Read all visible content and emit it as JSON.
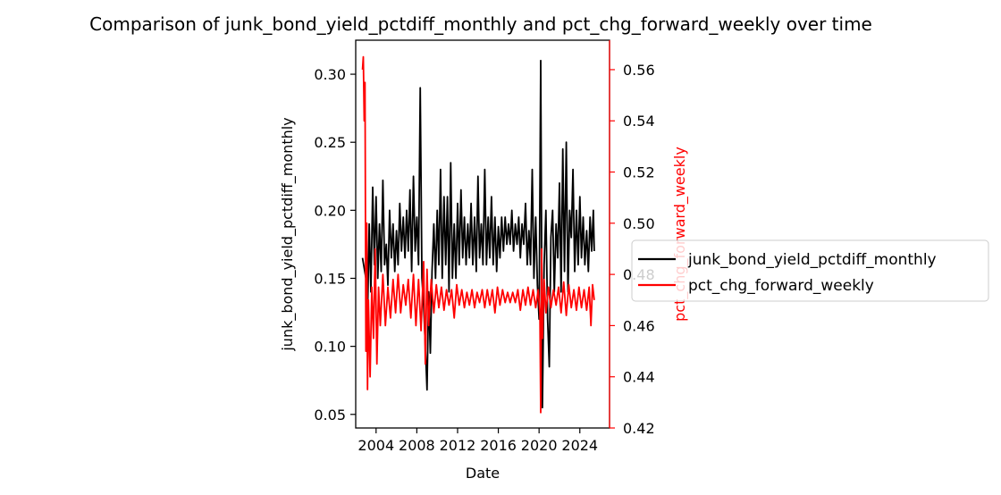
{
  "chart_data": {
    "type": "line",
    "title": "Comparison of junk_bond_yield_pctdiff_monthly and pct_chg_forward_weekly over time",
    "xlabel": "Date",
    "ylabel_left": "junk_bond_yield_pctdiff_monthly",
    "ylabel_right": "pct_chg_forward_weekly",
    "x_range": [
      "2002-01-01",
      "2026-12-01"
    ],
    "x_ticks": [
      "2004",
      "2008",
      "2012",
      "2016",
      "2020",
      "2024"
    ],
    "ylim_left": [
      0.04,
      0.325
    ],
    "ylim_right": [
      0.42,
      0.5715
    ],
    "yticks_left": [
      "0.05",
      "0.10",
      "0.15",
      "0.20",
      "0.25",
      "0.30"
    ],
    "yticks_right": [
      "0.42",
      "0.44",
      "0.46",
      "0.48",
      "0.50",
      "0.52",
      "0.54",
      "0.56"
    ],
    "legend_position": "center-right, outside plot",
    "series": [
      {
        "name": "junk_bond_yield_pctdiff_monthly",
        "axis": "left",
        "color": "#000000",
        "points": [
          [
            "2002-09-01",
            0.165
          ],
          [
            "2003-01-01",
            0.15
          ],
          [
            "2003-03-01",
            0.12
          ],
          [
            "2003-05-01",
            0.19
          ],
          [
            "2003-07-01",
            0.14
          ],
          [
            "2003-09-01",
            0.217
          ],
          [
            "2003-11-01",
            0.16
          ],
          [
            "2004-01-01",
            0.21
          ],
          [
            "2004-03-01",
            0.15
          ],
          [
            "2004-05-01",
            0.19
          ],
          [
            "2004-07-01",
            0.155
          ],
          [
            "2004-09-01",
            0.222
          ],
          [
            "2004-11-01",
            0.16
          ],
          [
            "2005-01-01",
            0.175
          ],
          [
            "2005-03-01",
            0.145
          ],
          [
            "2005-05-01",
            0.2
          ],
          [
            "2005-07-01",
            0.165
          ],
          [
            "2005-09-01",
            0.19
          ],
          [
            "2005-11-01",
            0.155
          ],
          [
            "2006-01-01",
            0.185
          ],
          [
            "2006-03-01",
            0.16
          ],
          [
            "2006-05-01",
            0.205
          ],
          [
            "2006-07-01",
            0.17
          ],
          [
            "2006-09-01",
            0.195
          ],
          [
            "2006-11-01",
            0.165
          ],
          [
            "2007-01-01",
            0.2
          ],
          [
            "2007-03-01",
            0.17
          ],
          [
            "2007-05-01",
            0.215
          ],
          [
            "2007-07-01",
            0.155
          ],
          [
            "2007-09-01",
            0.225
          ],
          [
            "2007-11-01",
            0.17
          ],
          [
            "2008-01-01",
            0.195
          ],
          [
            "2008-03-01",
            0.16
          ],
          [
            "2008-05-01",
            0.29
          ],
          [
            "2008-07-01",
            0.15
          ],
          [
            "2008-09-01",
            0.13
          ],
          [
            "2008-11-01",
            0.1
          ],
          [
            "2009-01-01",
            0.068
          ],
          [
            "2009-03-01",
            0.14
          ],
          [
            "2009-05-01",
            0.095
          ],
          [
            "2009-07-01",
            0.155
          ],
          [
            "2009-09-01",
            0.19
          ],
          [
            "2009-11-01",
            0.15
          ],
          [
            "2010-01-01",
            0.2
          ],
          [
            "2010-03-01",
            0.16
          ],
          [
            "2010-05-01",
            0.23
          ],
          [
            "2010-07-01",
            0.15
          ],
          [
            "2010-09-01",
            0.21
          ],
          [
            "2010-11-01",
            0.16
          ],
          [
            "2011-01-01",
            0.21
          ],
          [
            "2011-03-01",
            0.14
          ],
          [
            "2011-05-01",
            0.235
          ],
          [
            "2011-07-01",
            0.15
          ],
          [
            "2011-09-01",
            0.19
          ],
          [
            "2011-11-01",
            0.15
          ],
          [
            "2012-01-01",
            0.205
          ],
          [
            "2012-03-01",
            0.16
          ],
          [
            "2012-05-01",
            0.215
          ],
          [
            "2012-07-01",
            0.165
          ],
          [
            "2012-09-01",
            0.195
          ],
          [
            "2012-11-01",
            0.16
          ],
          [
            "2013-01-01",
            0.19
          ],
          [
            "2013-03-01",
            0.165
          ],
          [
            "2013-05-01",
            0.205
          ],
          [
            "2013-07-01",
            0.16
          ],
          [
            "2013-09-01",
            0.195
          ],
          [
            "2013-11-01",
            0.155
          ],
          [
            "2014-01-01",
            0.225
          ],
          [
            "2014-03-01",
            0.165
          ],
          [
            "2014-05-01",
            0.19
          ],
          [
            "2014-07-01",
            0.16
          ],
          [
            "2014-09-01",
            0.23
          ],
          [
            "2014-11-01",
            0.16
          ],
          [
            "2015-01-01",
            0.195
          ],
          [
            "2015-03-01",
            0.165
          ],
          [
            "2015-05-01",
            0.21
          ],
          [
            "2015-07-01",
            0.16
          ],
          [
            "2015-09-01",
            0.195
          ],
          [
            "2015-11-01",
            0.155
          ],
          [
            "2016-01-01",
            0.188
          ],
          [
            "2016-03-01",
            0.165
          ],
          [
            "2016-05-01",
            0.195
          ],
          [
            "2016-07-01",
            0.17
          ],
          [
            "2016-09-01",
            0.195
          ],
          [
            "2016-11-01",
            0.175
          ],
          [
            "2017-01-01",
            0.19
          ],
          [
            "2017-03-01",
            0.175
          ],
          [
            "2017-05-01",
            0.2
          ],
          [
            "2017-07-01",
            0.17
          ],
          [
            "2017-09-01",
            0.19
          ],
          [
            "2017-11-01",
            0.175
          ],
          [
            "2018-01-01",
            0.195
          ],
          [
            "2018-03-01",
            0.165
          ],
          [
            "2018-05-01",
            0.19
          ],
          [
            "2018-07-01",
            0.175
          ],
          [
            "2018-09-01",
            0.205
          ],
          [
            "2018-11-01",
            0.16
          ],
          [
            "2019-01-01",
            0.185
          ],
          [
            "2019-03-01",
            0.16
          ],
          [
            "2019-05-01",
            0.23
          ],
          [
            "2019-07-01",
            0.15
          ],
          [
            "2019-09-01",
            0.195
          ],
          [
            "2019-11-01",
            0.145
          ],
          [
            "2020-01-01",
            0.12
          ],
          [
            "2020-03-01",
            0.31
          ],
          [
            "2020-05-01",
            0.055
          ],
          [
            "2020-07-01",
            0.16
          ],
          [
            "2020-09-01",
            0.2
          ],
          [
            "2020-11-01",
            0.12
          ],
          [
            "2021-01-01",
            0.085
          ],
          [
            "2021-03-01",
            0.18
          ],
          [
            "2021-05-01",
            0.2
          ],
          [
            "2021-07-01",
            0.14
          ],
          [
            "2021-09-01",
            0.19
          ],
          [
            "2021-11-01",
            0.165
          ],
          [
            "2022-01-01",
            0.22
          ],
          [
            "2022-03-01",
            0.14
          ],
          [
            "2022-05-01",
            0.245
          ],
          [
            "2022-07-01",
            0.155
          ],
          [
            "2022-09-01",
            0.25
          ],
          [
            "2022-11-01",
            0.14
          ],
          [
            "2023-01-01",
            0.2
          ],
          [
            "2023-03-01",
            0.18
          ],
          [
            "2023-05-01",
            0.23
          ],
          [
            "2023-07-01",
            0.155
          ],
          [
            "2023-09-01",
            0.2
          ],
          [
            "2023-11-01",
            0.16
          ],
          [
            "2024-01-01",
            0.21
          ],
          [
            "2024-03-01",
            0.165
          ],
          [
            "2024-05-01",
            0.195
          ],
          [
            "2024-07-01",
            0.16
          ],
          [
            "2024-09-01",
            0.185
          ],
          [
            "2024-11-01",
            0.155
          ],
          [
            "2025-01-01",
            0.195
          ],
          [
            "2025-03-01",
            0.17
          ],
          [
            "2025-05-01",
            0.2
          ],
          [
            "2025-06-01",
            0.17
          ]
        ]
      },
      {
        "name": "pct_chg_forward_weekly",
        "axis": "right",
        "color": "#ff0000",
        "points": [
          [
            "2002-09-01",
            0.56
          ],
          [
            "2002-10-01",
            0.565
          ],
          [
            "2002-11-01",
            0.54
          ],
          [
            "2002-12-01",
            0.555
          ],
          [
            "2003-01-01",
            0.45
          ],
          [
            "2003-02-01",
            0.5
          ],
          [
            "2003-03-01",
            0.435
          ],
          [
            "2003-04-01",
            0.47
          ],
          [
            "2003-06-01",
            0.44
          ],
          [
            "2003-08-01",
            0.475
          ],
          [
            "2003-10-01",
            0.455
          ],
          [
            "2003-12-01",
            0.49
          ],
          [
            "2004-02-01",
            0.445
          ],
          [
            "2004-04-01",
            0.475
          ],
          [
            "2004-06-01",
            0.46
          ],
          [
            "2004-09-01",
            0.48
          ],
          [
            "2004-12-01",
            0.46
          ],
          [
            "2005-03-01",
            0.475
          ],
          [
            "2005-06-01",
            0.463
          ],
          [
            "2005-09-01",
            0.478
          ],
          [
            "2005-12-01",
            0.465
          ],
          [
            "2006-03-01",
            0.48
          ],
          [
            "2006-06-01",
            0.465
          ],
          [
            "2006-09-01",
            0.476
          ],
          [
            "2006-12-01",
            0.468
          ],
          [
            "2007-03-01",
            0.478
          ],
          [
            "2007-06-01",
            0.463
          ],
          [
            "2007-09-01",
            0.48
          ],
          [
            "2007-12-01",
            0.46
          ],
          [
            "2008-03-01",
            0.478
          ],
          [
            "2008-06-01",
            0.458
          ],
          [
            "2008-09-01",
            0.485
          ],
          [
            "2008-11-01",
            0.445
          ],
          [
            "2009-01-01",
            0.482
          ],
          [
            "2009-03-01",
            0.46
          ],
          [
            "2009-06-01",
            0.478
          ],
          [
            "2009-09-01",
            0.465
          ],
          [
            "2009-12-01",
            0.476
          ],
          [
            "2010-03-01",
            0.467
          ],
          [
            "2010-06-01",
            0.475
          ],
          [
            "2010-09-01",
            0.466
          ],
          [
            "2010-12-01",
            0.474
          ],
          [
            "2011-03-01",
            0.468
          ],
          [
            "2011-06-01",
            0.474
          ],
          [
            "2011-09-01",
            0.463
          ],
          [
            "2011-12-01",
            0.476
          ],
          [
            "2012-03-01",
            0.468
          ],
          [
            "2012-06-01",
            0.474
          ],
          [
            "2012-09-01",
            0.467
          ],
          [
            "2012-12-01",
            0.473
          ],
          [
            "2013-03-01",
            0.468
          ],
          [
            "2013-06-01",
            0.474
          ],
          [
            "2013-09-01",
            0.467
          ],
          [
            "2013-12-01",
            0.473
          ],
          [
            "2014-03-01",
            0.469
          ],
          [
            "2014-06-01",
            0.474
          ],
          [
            "2014-09-01",
            0.467
          ],
          [
            "2014-12-01",
            0.474
          ],
          [
            "2015-03-01",
            0.468
          ],
          [
            "2015-06-01",
            0.474
          ],
          [
            "2015-09-01",
            0.465
          ],
          [
            "2015-12-01",
            0.475
          ],
          [
            "2016-03-01",
            0.468
          ],
          [
            "2016-06-01",
            0.474
          ],
          [
            "2016-09-01",
            0.469
          ],
          [
            "2016-12-01",
            0.473
          ],
          [
            "2017-03-01",
            0.469
          ],
          [
            "2017-06-01",
            0.473
          ],
          [
            "2017-09-01",
            0.469
          ],
          [
            "2017-12-01",
            0.474
          ],
          [
            "2018-03-01",
            0.466
          ],
          [
            "2018-06-01",
            0.474
          ],
          [
            "2018-09-01",
            0.468
          ],
          [
            "2018-12-01",
            0.475
          ],
          [
            "2019-03-01",
            0.468
          ],
          [
            "2019-06-01",
            0.474
          ],
          [
            "2019-09-01",
            0.467
          ],
          [
            "2019-12-01",
            0.474
          ],
          [
            "2020-02-01",
            0.465
          ],
          [
            "2020-03-01",
            0.426
          ],
          [
            "2020-04-01",
            0.49
          ],
          [
            "2020-05-01",
            0.455
          ],
          [
            "2020-07-01",
            0.478
          ],
          [
            "2020-09-01",
            0.465
          ],
          [
            "2020-12-01",
            0.475
          ],
          [
            "2021-03-01",
            0.467
          ],
          [
            "2021-06-01",
            0.474
          ],
          [
            "2021-09-01",
            0.468
          ],
          [
            "2021-12-01",
            0.475
          ],
          [
            "2022-03-01",
            0.465
          ],
          [
            "2022-06-01",
            0.477
          ],
          [
            "2022-09-01",
            0.464
          ],
          [
            "2022-12-01",
            0.476
          ],
          [
            "2023-03-01",
            0.467
          ],
          [
            "2023-06-01",
            0.474
          ],
          [
            "2023-09-01",
            0.466
          ],
          [
            "2023-12-01",
            0.475
          ],
          [
            "2024-03-01",
            0.467
          ],
          [
            "2024-06-01",
            0.474
          ],
          [
            "2024-09-01",
            0.466
          ],
          [
            "2024-12-01",
            0.475
          ],
          [
            "2025-02-01",
            0.46
          ],
          [
            "2025-04-01",
            0.476
          ],
          [
            "2025-06-01",
            0.47
          ]
        ]
      }
    ]
  }
}
